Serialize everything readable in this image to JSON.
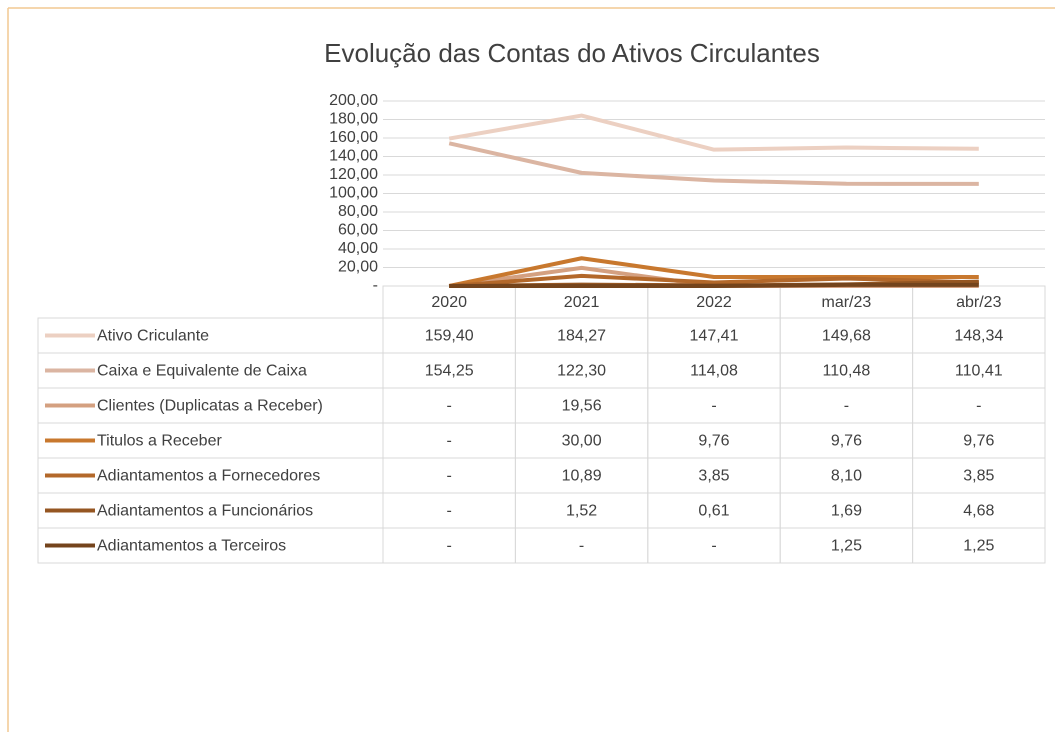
{
  "chart_data": {
    "type": "line",
    "title": "Evolução das Contas do Ativos Circulantes",
    "categories": [
      "2020",
      "2021",
      "2022",
      "mar/23",
      "abr/23"
    ],
    "ylim": [
      0,
      200
    ],
    "yticks": [
      {
        "value": 0,
        "label": "-"
      },
      {
        "value": 20,
        "label": "20,00"
      },
      {
        "value": 40,
        "label": "40,00"
      },
      {
        "value": 60,
        "label": "60,00"
      },
      {
        "value": 80,
        "label": "80,00"
      },
      {
        "value": 100,
        "label": "100,00"
      },
      {
        "value": 120,
        "label": "120,00"
      },
      {
        "value": 140,
        "label": "140,00"
      },
      {
        "value": 160,
        "label": "160,00"
      },
      {
        "value": 180,
        "label": "180,00"
      },
      {
        "value": 200,
        "label": "200,00"
      }
    ],
    "grid": true,
    "series": [
      {
        "name": "Ativo Criculante",
        "color": "#ecd0c2",
        "values": [
          159.4,
          184.27,
          147.41,
          149.68,
          148.34
        ],
        "value_labels": [
          "159,40",
          "184,27",
          "147,41",
          "149,68",
          "148,34"
        ]
      },
      {
        "name": "Caixa e Equivalente de Caixa",
        "color": "#dbb5a2",
        "values": [
          154.25,
          122.3,
          114.08,
          110.48,
          110.41
        ],
        "value_labels": [
          "154,25",
          "122,30",
          "114,08",
          "110,48",
          "110,41"
        ]
      },
      {
        "name": "Clientes (Duplicatas a Receber)",
        "color": "#d4a080",
        "values": [
          0,
          19.56,
          0,
          0,
          0
        ],
        "value_labels": [
          "-",
          "19,56",
          "-",
          "-",
          "-"
        ]
      },
      {
        "name": "Titulos a Receber",
        "color": "#c8782e",
        "values": [
          0,
          30.0,
          9.76,
          9.76,
          9.76
        ],
        "value_labels": [
          "-",
          "30,00",
          "9,76",
          "9,76",
          "9,76"
        ]
      },
      {
        "name": "Adiantamentos a Fornecedores",
        "color": "#b3682a",
        "values": [
          0,
          10.89,
          3.85,
          8.1,
          3.85
        ],
        "value_labels": [
          "-",
          "10,89",
          "3,85",
          "8,10",
          "3,85"
        ]
      },
      {
        "name": "Adiantamentos a Funcionários",
        "color": "#955622",
        "values": [
          0,
          1.52,
          0.61,
          1.69,
          4.68
        ],
        "value_labels": [
          "-",
          "1,52",
          "0,61",
          "1,69",
          "4,68"
        ]
      },
      {
        "name": "Adiantamentos a Terceiros",
        "color": "#74441c",
        "values": [
          0,
          0,
          0,
          1.25,
          1.25
        ],
        "value_labels": [
          "-",
          "-",
          "-",
          "1,25",
          "1,25"
        ]
      }
    ]
  }
}
